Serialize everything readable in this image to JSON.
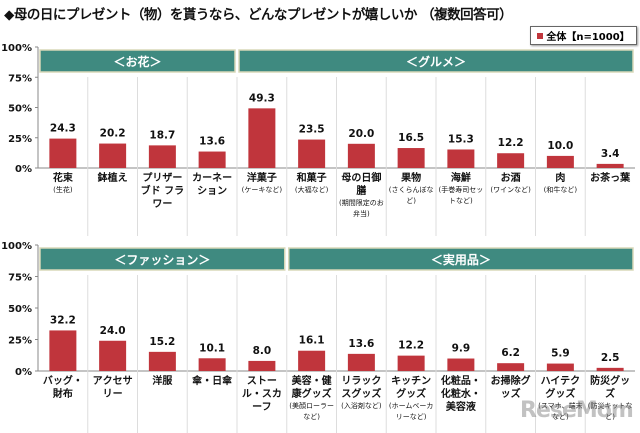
{
  "title": "◆母の日にプレゼント（物）を貰うなら、どんなプレゼントが嬉しいか （複数回答可）",
  "legend": {
    "label": "全体【n=1000】",
    "color": "#c0353c"
  },
  "watermark": "ReseMom",
  "chart_data": [
    {
      "type": "bar",
      "ylim": [
        0,
        100
      ],
      "yticks": [
        "0%",
        "25%",
        "50%",
        "75%",
        "100%"
      ],
      "groups": [
        {
          "label": "＜お花＞",
          "count": 4
        },
        {
          "label": "＜グルメ＞",
          "count": 8
        }
      ],
      "categories": [
        {
          "label": "花束",
          "sub": "(生花)"
        },
        {
          "label": "鉢植え",
          "sub": ""
        },
        {
          "label": "プリザーブド フラワー",
          "sub": ""
        },
        {
          "label": "カーネーション",
          "sub": ""
        },
        {
          "label": "洋菓子",
          "sub": "(ケーキなど)"
        },
        {
          "label": "和菓子",
          "sub": "(大福など)"
        },
        {
          "label": "母の日御膳",
          "sub": "(期間限定のお弁当)"
        },
        {
          "label": "果物",
          "sub": "(さくらんぼなど)"
        },
        {
          "label": "海鮮",
          "sub": "(手巻寿司セットなど)"
        },
        {
          "label": "お酒",
          "sub": "(ワインなど)"
        },
        {
          "label": "肉",
          "sub": "(和牛など)"
        },
        {
          "label": "お茶っ葉",
          "sub": ""
        }
      ],
      "series": [
        {
          "name": "全体【n=1000】",
          "values": [
            24.3,
            20.2,
            18.7,
            13.6,
            49.3,
            23.5,
            20.0,
            16.5,
            15.3,
            12.2,
            10.0,
            3.4
          ]
        }
      ]
    },
    {
      "type": "bar",
      "ylim": [
        0,
        100
      ],
      "yticks": [
        "0%",
        "25%",
        "50%",
        "75%",
        "100%"
      ],
      "groups": [
        {
          "label": "＜ファッション＞",
          "count": 5
        },
        {
          "label": "＜実用品＞",
          "count": 7
        }
      ],
      "categories": [
        {
          "label": "バッグ・財布",
          "sub": ""
        },
        {
          "label": "アクセサリー",
          "sub": ""
        },
        {
          "label": "洋服",
          "sub": ""
        },
        {
          "label": "傘・日傘",
          "sub": ""
        },
        {
          "label": "ストール・スカーフ",
          "sub": ""
        },
        {
          "label": "美容・健康グッズ",
          "sub": "(美顔ローラーなど)"
        },
        {
          "label": "リラックスグッズ",
          "sub": "(入浴剤など)"
        },
        {
          "label": "キッチングッズ",
          "sub": "(ホームベーカリーなど)"
        },
        {
          "label": "化粧品・化粧水・美容液",
          "sub": ""
        },
        {
          "label": "お掃除グッズ",
          "sub": ""
        },
        {
          "label": "ハイテクグッズ",
          "sub": "(スマホ、端末など)"
        },
        {
          "label": "防災グッズ",
          "sub": "(防災キットなど)"
        }
      ],
      "series": [
        {
          "name": "全体【n=1000】",
          "values": [
            32.2,
            24.0,
            15.2,
            10.1,
            8.0,
            16.1,
            13.6,
            12.2,
            9.9,
            6.2,
            5.9,
            2.5
          ]
        }
      ]
    }
  ]
}
